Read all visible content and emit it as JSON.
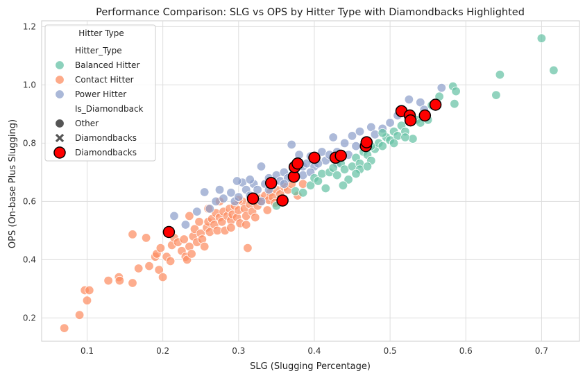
{
  "chart_data": {
    "type": "scatter",
    "title": "Performance Comparison: SLG vs OPS by Hitter Type with Diamondbacks Highlighted",
    "xlabel": "SLG (Slugging Percentage)",
    "ylabel": "OPS (On-base Plus Slugging)",
    "xlim": [
      0.04,
      0.75
    ],
    "ylim": [
      0.12,
      1.22
    ],
    "xticks": [
      0.1,
      0.2,
      0.3,
      0.4,
      0.5,
      0.6,
      0.7
    ],
    "yticks": [
      0.2,
      0.4,
      0.6,
      0.8,
      1.0,
      1.2
    ],
    "xtick_labels": [
      "0.1",
      "0.2",
      "0.3",
      "0.4",
      "0.5",
      "0.6",
      "0.7"
    ],
    "ytick_labels": [
      "0.2",
      "0.4",
      "0.6",
      "0.8",
      "1.0",
      "1.2"
    ],
    "grid": true,
    "legend": {
      "title": "Hitter Type",
      "placement": "top-left",
      "entries": [
        {
          "kind": "header",
          "label": "Hitter_Type"
        },
        {
          "kind": "circle",
          "label": "Balanced Hitter",
          "color": "#66c2a5"
        },
        {
          "kind": "circle",
          "label": "Contact Hitter",
          "color": "#fc8d62"
        },
        {
          "kind": "circle",
          "label": "Power Hitter",
          "color": "#8da0cb"
        },
        {
          "kind": "header",
          "label": "Is_Diamondback"
        },
        {
          "kind": "circle",
          "label": "Other",
          "color": "#555555"
        },
        {
          "kind": "cross",
          "label": "Diamondbacks",
          "color": "#555555"
        },
        {
          "kind": "redcircle",
          "label": "Diamondbacks",
          "color": "#ff0000"
        }
      ]
    },
    "series": [
      {
        "name": "Contact Hitter",
        "color": "#fc8d62",
        "points": [
          [
            0.07,
            0.165
          ],
          [
            0.09,
            0.21
          ],
          [
            0.097,
            0.295
          ],
          [
            0.1,
            0.26
          ],
          [
            0.103,
            0.295
          ],
          [
            0.128,
            0.328
          ],
          [
            0.142,
            0.34
          ],
          [
            0.143,
            0.328
          ],
          [
            0.16,
            0.32
          ],
          [
            0.16,
            0.487
          ],
          [
            0.168,
            0.37
          ],
          [
            0.178,
            0.475
          ],
          [
            0.182,
            0.378
          ],
          [
            0.19,
            0.41
          ],
          [
            0.192,
            0.42
          ],
          [
            0.195,
            0.365
          ],
          [
            0.197,
            0.44
          ],
          [
            0.2,
            0.34
          ],
          [
            0.205,
            0.41
          ],
          [
            0.21,
            0.395
          ],
          [
            0.212,
            0.45
          ],
          [
            0.215,
            0.475
          ],
          [
            0.22,
            0.46
          ],
          [
            0.225,
            0.43
          ],
          [
            0.228,
            0.47
          ],
          [
            0.23,
            0.41
          ],
          [
            0.232,
            0.4
          ],
          [
            0.235,
            0.445
          ],
          [
            0.238,
            0.42
          ],
          [
            0.24,
            0.48
          ],
          [
            0.242,
            0.505
          ],
          [
            0.245,
            0.46
          ],
          [
            0.248,
            0.53
          ],
          [
            0.25,
            0.49
          ],
          [
            0.252,
            0.47
          ],
          [
            0.255,
            0.445
          ],
          [
            0.258,
            0.51
          ],
          [
            0.26,
            0.53
          ],
          [
            0.262,
            0.495
          ],
          [
            0.265,
            0.54
          ],
          [
            0.268,
            0.52
          ],
          [
            0.27,
            0.56
          ],
          [
            0.272,
            0.5
          ],
          [
            0.275,
            0.545
          ],
          [
            0.278,
            0.53
          ],
          [
            0.28,
            0.565
          ],
          [
            0.282,
            0.5
          ],
          [
            0.285,
            0.55
          ],
          [
            0.288,
            0.575
          ],
          [
            0.29,
            0.535
          ],
          [
            0.292,
            0.555
          ],
          [
            0.295,
            0.585
          ],
          [
            0.298,
            0.545
          ],
          [
            0.3,
            0.57
          ],
          [
            0.302,
            0.525
          ],
          [
            0.305,
            0.6
          ],
          [
            0.308,
            0.575
          ],
          [
            0.31,
            0.55
          ],
          [
            0.312,
            0.44
          ],
          [
            0.315,
            0.59
          ],
          [
            0.318,
            0.565
          ],
          [
            0.32,
            0.6
          ],
          [
            0.325,
            0.585
          ],
          [
            0.328,
            0.61
          ],
          [
            0.33,
            0.6
          ],
          [
            0.335,
            0.62
          ],
          [
            0.34,
            0.605
          ],
          [
            0.342,
            0.63
          ],
          [
            0.345,
            0.615
          ],
          [
            0.35,
            0.64
          ],
          [
            0.355,
            0.625
          ],
          [
            0.36,
            0.65
          ],
          [
            0.365,
            0.64
          ],
          [
            0.37,
            0.66
          ],
          [
            0.378,
            0.62
          ],
          [
            0.385,
            0.66
          ],
          [
            0.26,
            0.575
          ],
          [
            0.275,
            0.6
          ],
          [
            0.29,
            0.51
          ],
          [
            0.3,
            0.605
          ],
          [
            0.31,
            0.52
          ],
          [
            0.322,
            0.545
          ],
          [
            0.338,
            0.57
          ],
          [
            0.348,
            0.595
          ],
          [
            0.235,
            0.55
          ]
        ]
      },
      {
        "name": "Power Hitter",
        "color": "#8da0cb",
        "points": [
          [
            0.215,
            0.55
          ],
          [
            0.23,
            0.52
          ],
          [
            0.245,
            0.565
          ],
          [
            0.255,
            0.632
          ],
          [
            0.262,
            0.575
          ],
          [
            0.27,
            0.6
          ],
          [
            0.275,
            0.64
          ],
          [
            0.28,
            0.61
          ],
          [
            0.29,
            0.63
          ],
          [
            0.295,
            0.6
          ],
          [
            0.3,
            0.615
          ],
          [
            0.305,
            0.665
          ],
          [
            0.31,
            0.64
          ],
          [
            0.315,
            0.62
          ],
          [
            0.32,
            0.66
          ],
          [
            0.325,
            0.64
          ],
          [
            0.33,
            0.72
          ],
          [
            0.335,
            0.66
          ],
          [
            0.34,
            0.68
          ],
          [
            0.345,
            0.655
          ],
          [
            0.35,
            0.69
          ],
          [
            0.355,
            0.67
          ],
          [
            0.36,
            0.7
          ],
          [
            0.365,
            0.68
          ],
          [
            0.37,
            0.795
          ],
          [
            0.375,
            0.71
          ],
          [
            0.38,
            0.76
          ],
          [
            0.385,
            0.72
          ],
          [
            0.39,
            0.73
          ],
          [
            0.395,
            0.755
          ],
          [
            0.4,
            0.72
          ],
          [
            0.41,
            0.77
          ],
          [
            0.415,
            0.74
          ],
          [
            0.42,
            0.76
          ],
          [
            0.425,
            0.82
          ],
          [
            0.43,
            0.77
          ],
          [
            0.44,
            0.8
          ],
          [
            0.445,
            0.76
          ],
          [
            0.45,
            0.825
          ],
          [
            0.455,
            0.79
          ],
          [
            0.46,
            0.84
          ],
          [
            0.47,
            0.8
          ],
          [
            0.475,
            0.855
          ],
          [
            0.48,
            0.83
          ],
          [
            0.49,
            0.85
          ],
          [
            0.5,
            0.87
          ],
          [
            0.51,
            0.895
          ],
          [
            0.525,
            0.95
          ],
          [
            0.54,
            0.94
          ],
          [
            0.545,
            0.915
          ],
          [
            0.568,
            0.99
          ],
          [
            0.33,
            0.6
          ],
          [
            0.34,
            0.64
          ],
          [
            0.36,
            0.66
          ],
          [
            0.385,
            0.69
          ],
          [
            0.405,
            0.73
          ],
          [
            0.43,
            0.73
          ],
          [
            0.298,
            0.67
          ],
          [
            0.315,
            0.675
          ],
          [
            0.395,
            0.7
          ]
        ]
      },
      {
        "name": "Balanced Hitter",
        "color": "#66c2a5",
        "points": [
          [
            0.35,
            0.585
          ],
          [
            0.36,
            0.6
          ],
          [
            0.375,
            0.635
          ],
          [
            0.385,
            0.63
          ],
          [
            0.395,
            0.655
          ],
          [
            0.4,
            0.68
          ],
          [
            0.405,
            0.67
          ],
          [
            0.41,
            0.695
          ],
          [
            0.415,
            0.645
          ],
          [
            0.42,
            0.7
          ],
          [
            0.425,
            0.715
          ],
          [
            0.43,
            0.69
          ],
          [
            0.435,
            0.73
          ],
          [
            0.44,
            0.71
          ],
          [
            0.445,
            0.675
          ],
          [
            0.45,
            0.72
          ],
          [
            0.455,
            0.75
          ],
          [
            0.46,
            0.73
          ],
          [
            0.465,
            0.77
          ],
          [
            0.47,
            0.76
          ],
          [
            0.475,
            0.74
          ],
          [
            0.48,
            0.78
          ],
          [
            0.485,
            0.8
          ],
          [
            0.49,
            0.79
          ],
          [
            0.495,
            0.82
          ],
          [
            0.5,
            0.81
          ],
          [
            0.505,
            0.84
          ],
          [
            0.51,
            0.825
          ],
          [
            0.515,
            0.86
          ],
          [
            0.52,
            0.84
          ],
          [
            0.525,
            0.875
          ],
          [
            0.53,
            0.815
          ],
          [
            0.535,
            0.88
          ],
          [
            0.54,
            0.87
          ],
          [
            0.545,
            0.9
          ],
          [
            0.55,
            0.88
          ],
          [
            0.555,
            0.93
          ],
          [
            0.565,
            0.96
          ],
          [
            0.583,
            0.995
          ],
          [
            0.585,
            0.935
          ],
          [
            0.587,
            0.978
          ],
          [
            0.64,
            0.965
          ],
          [
            0.645,
            1.035
          ],
          [
            0.7,
            1.16
          ],
          [
            0.716,
            1.05
          ],
          [
            0.46,
            0.71
          ],
          [
            0.475,
            0.79
          ],
          [
            0.49,
            0.835
          ],
          [
            0.505,
            0.8
          ],
          [
            0.52,
            0.82
          ],
          [
            0.438,
            0.655
          ],
          [
            0.455,
            0.695
          ],
          [
            0.47,
            0.72
          ]
        ]
      }
    ],
    "highlight": {
      "name": "Diamondbacks",
      "color": "#ff0000",
      "points": [
        [
          0.208,
          0.495
        ],
        [
          0.319,
          0.61
        ],
        [
          0.343,
          0.663
        ],
        [
          0.358,
          0.603
        ],
        [
          0.373,
          0.685
        ],
        [
          0.374,
          0.718
        ],
        [
          0.378,
          0.73
        ],
        [
          0.4,
          0.75
        ],
        [
          0.428,
          0.75
        ],
        [
          0.435,
          0.757
        ],
        [
          0.468,
          0.79
        ],
        [
          0.469,
          0.803
        ],
        [
          0.515,
          0.91
        ],
        [
          0.526,
          0.895
        ],
        [
          0.527,
          0.878
        ],
        [
          0.546,
          0.895
        ],
        [
          0.56,
          0.932
        ]
      ]
    }
  }
}
